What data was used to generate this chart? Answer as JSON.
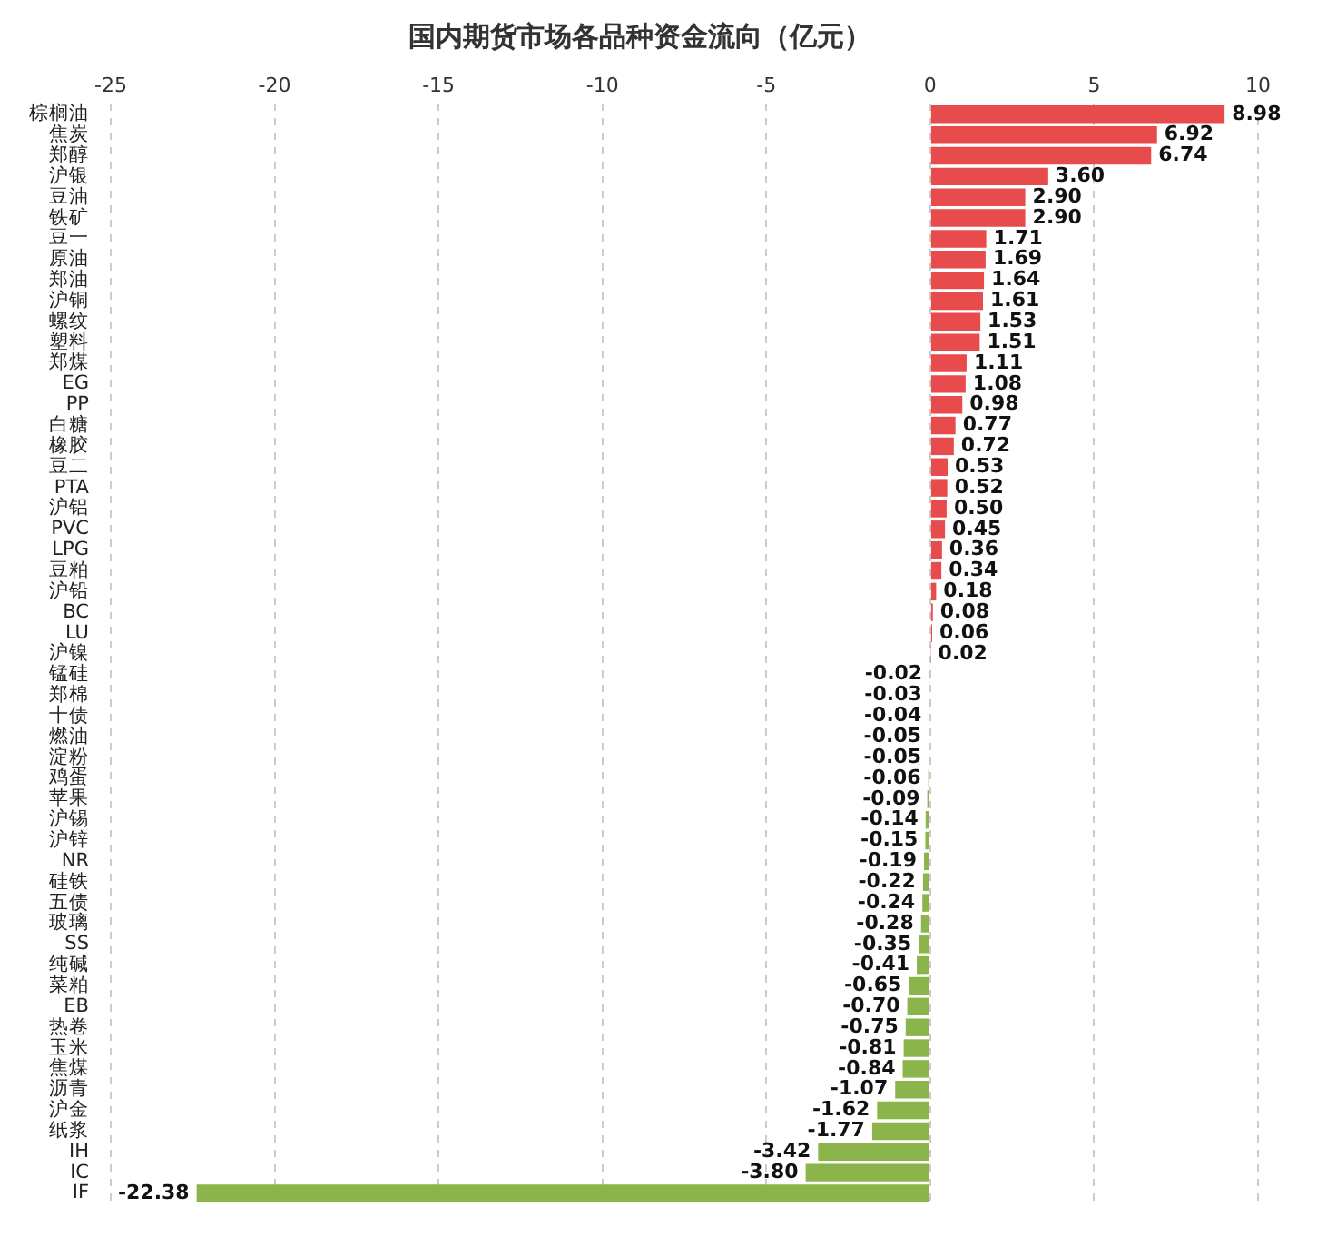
{
  "chart_data": {
    "type": "bar",
    "orientation": "horizontal",
    "title": "国内期货市场各品种资金流向（亿元）",
    "categories": [
      "棕榈油",
      "焦炭",
      "郑醇",
      "沪银",
      "豆油",
      "铁矿",
      "豆一",
      "原油",
      "郑油",
      "沪铜",
      "螺纹",
      "塑料",
      "郑煤",
      "EG",
      "PP",
      "白糖",
      "橡胶",
      "豆二",
      "PTA",
      "沪铝",
      "PVC",
      "LPG",
      "豆粕",
      "沪铅",
      "BC",
      "LU",
      "沪镍",
      "锰硅",
      "郑棉",
      "十债",
      "燃油",
      "淀粉",
      "鸡蛋",
      "苹果",
      "沪锡",
      "沪锌",
      "NR",
      "硅铁",
      "五债",
      "玻璃",
      "SS",
      "纯碱",
      "菜粕",
      "EB",
      "热卷",
      "玉米",
      "焦煤",
      "沥青",
      "沪金",
      "纸浆",
      "IH",
      "IC",
      "IF"
    ],
    "values": [
      8.98,
      6.92,
      6.74,
      3.6,
      2.9,
      2.9,
      1.71,
      1.69,
      1.64,
      1.61,
      1.53,
      1.51,
      1.11,
      1.08,
      0.98,
      0.77,
      0.72,
      0.53,
      0.52,
      0.5,
      0.45,
      0.36,
      0.34,
      0.18,
      0.08,
      0.06,
      0.02,
      -0.02,
      -0.03,
      -0.04,
      -0.05,
      -0.05,
      -0.06,
      -0.09,
      -0.14,
      -0.15,
      -0.19,
      -0.22,
      -0.24,
      -0.28,
      -0.35,
      -0.41,
      -0.65,
      -0.7,
      -0.75,
      -0.81,
      -0.84,
      -1.07,
      -1.62,
      -1.77,
      -3.42,
      -3.8,
      -22.38
    ],
    "value_labels": [
      "8.98",
      "6.92",
      "6.74",
      "3.60",
      "2.90",
      "2.90",
      "1.71",
      "1.69",
      "1.64",
      "1.61",
      "1.53",
      "1.51",
      "1.11",
      "1.08",
      "0.98",
      "0.77",
      "0.72",
      "0.53",
      "0.52",
      "0.50",
      "0.45",
      "0.36",
      "0.34",
      "0.18",
      "0.08",
      "0.06",
      "0.02",
      "-0.02",
      "-0.03",
      "-0.04",
      "-0.05",
      "-0.05",
      "-0.06",
      "-0.09",
      "-0.14",
      "-0.15",
      "-0.19",
      "-0.22",
      "-0.24",
      "-0.28",
      "-0.35",
      "-0.41",
      "-0.65",
      "-0.70",
      "-0.75",
      "-0.81",
      "-0.84",
      "-1.07",
      "-1.62",
      "-1.77",
      "-3.42",
      "-3.80",
      "-22.38"
    ],
    "colors": [
      "#e84b4b",
      "#e84b4b",
      "#e84b4b",
      "#e84b4b",
      "#e84b4b",
      "#e84b4b",
      "#e84b4b",
      "#e84b4b",
      "#e84b4b",
      "#e84b4b",
      "#e84b4b",
      "#e84b4b",
      "#e84b4b",
      "#e84b4b",
      "#e84b4b",
      "#e84b4b",
      "#e84b4b",
      "#e84b4b",
      "#e84b4b",
      "#e84b4b",
      "#e84b4b",
      "#e84b4b",
      "#e84b4b",
      "#e84b4b",
      "#e84b4b",
      "#e84b4b",
      "#e84b4b",
      "#8bb44a",
      "#8bb44a",
      "#8bb44a",
      "#8bb44a",
      "#8bb44a",
      "#8bb44a",
      "#8bb44a",
      "#8bb44a",
      "#8bb44a",
      "#8bb44a",
      "#8bb44a",
      "#8bb44a",
      "#8bb44a",
      "#8bb44a",
      "#8bb44a",
      "#8bb44a",
      "#8bb44a",
      "#8bb44a",
      "#8bb44a",
      "#8bb44a",
      "#8bb44a",
      "#8bb44a",
      "#8bb44a",
      "#8bb44a",
      "#8bb44a",
      "#8bb44a"
    ],
    "xlim": [
      -25,
      10
    ],
    "xticks": [
      -25,
      -20,
      -15,
      -10,
      -5,
      0,
      5,
      10
    ],
    "grid": "x",
    "legend": false
  }
}
